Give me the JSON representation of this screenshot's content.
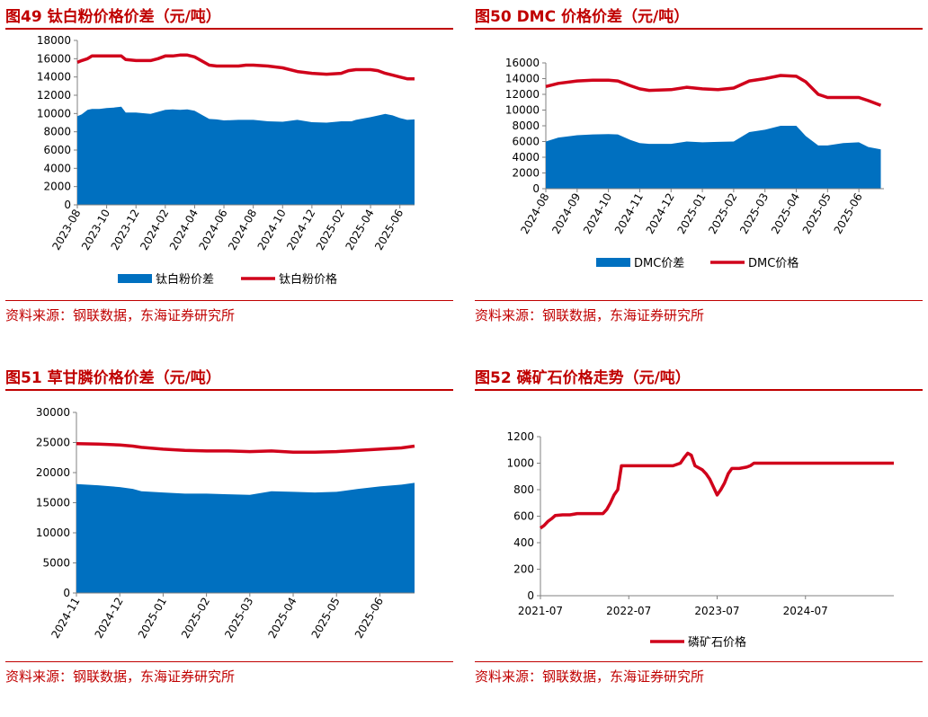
{
  "charts": [
    {
      "id": "c49",
      "panel_title": "图49  钛白粉价格价差（元/吨）",
      "source": "资料来源：钢联数据，东海证券研究所",
      "chart_data": {
        "type": "area+line",
        "title": "钛白粉价格价差（元/吨）",
        "ylim": [
          0,
          18000
        ],
        "yticks": [
          0,
          2000,
          4000,
          6000,
          8000,
          10000,
          12000,
          14000,
          16000,
          18000
        ],
        "ytick_labels": [
          "0",
          "2000",
          "4000",
          "6000",
          "8000",
          "10000",
          "12000",
          "14000",
          "16000",
          "18000"
        ],
        "xlim": [
          0,
          23
        ],
        "xticks": [
          0,
          2,
          4,
          6,
          8,
          10,
          12,
          14,
          16,
          18,
          20,
          22
        ],
        "xtick_labels": [
          "2023-08",
          "2023-10",
          "2023-12",
          "2024-02",
          "2024-04",
          "2024-06",
          "2024-08",
          "2024-10",
          "2024-12",
          "2025-02",
          "2025-04",
          "2025-06"
        ],
        "series": [
          {
            "name": "钛白粉价差",
            "kind": "area",
            "x": [
              0,
              0.3,
              0.7,
              1,
              1.5,
              2,
              2.5,
              3,
              3.3,
              4,
              5,
              6,
              6.5,
              7,
              7.5,
              8,
              9,
              9.5,
              10,
              11,
              12,
              13,
              14,
              15,
              16,
              17,
              18,
              18.7,
              19,
              20,
              21,
              21.5,
              22,
              22.5,
              23
            ],
            "y": [
              9700,
              9900,
              10400,
              10500,
              10500,
              10600,
              10650,
              10750,
              10100,
              10100,
              9950,
              10400,
              10450,
              10400,
              10450,
              10300,
              9400,
              9350,
              9250,
              9300,
              9300,
              9150,
              9100,
              9300,
              9050,
              9000,
              9150,
              9150,
              9300,
              9600,
              9950,
              9800,
              9500,
              9300,
              9350
            ]
          },
          {
            "name": "钛白粉价格",
            "kind": "line",
            "x": [
              0,
              0.3,
              0.7,
              1,
              1.5,
              2,
              2.5,
              3,
              3.3,
              4,
              5,
              5.5,
              6,
              6.5,
              7,
              7.5,
              8,
              9,
              9.5,
              10,
              11,
              11.5,
              12,
              13,
              14,
              15,
              16,
              17,
              18,
              18.5,
              19,
              20,
              20.5,
              21,
              21.5,
              22,
              22.5,
              23
            ],
            "y": [
              15600,
              15800,
              16000,
              16300,
              16300,
              16300,
              16300,
              16300,
              15900,
              15800,
              15800,
              16000,
              16300,
              16300,
              16400,
              16400,
              16200,
              15300,
              15200,
              15200,
              15200,
              15300,
              15300,
              15200,
              15000,
              14600,
              14400,
              14300,
              14400,
              14700,
              14800,
              14800,
              14700,
              14400,
              14200,
              14000,
              13800,
              13800
            ]
          }
        ],
        "legend": [
          "钛白粉价差",
          "钛白粉价格"
        ],
        "legend_position": "bottom"
      }
    },
    {
      "id": "c50",
      "panel_title": "图50  DMC 价格价差（元/吨）",
      "source": "资料来源：钢联数据，东海证券研究所",
      "chart_data": {
        "type": "area+line",
        "title": "DMC 价格价差（元/吨）",
        "ylim": [
          0,
          16000
        ],
        "yticks": [
          0,
          2000,
          4000,
          6000,
          8000,
          10000,
          12000,
          14000,
          16000
        ],
        "ytick_labels": [
          "0",
          "2000",
          "4000",
          "6000",
          "8000",
          "10000",
          "12000",
          "14000",
          "16000"
        ],
        "xlim": [
          0,
          10.8
        ],
        "xticks": [
          0,
          1,
          2,
          3,
          4,
          5,
          6,
          7,
          8,
          9,
          10
        ],
        "xtick_labels": [
          "2024-08",
          "2024-09",
          "2024-10",
          "2024-11",
          "2024-12",
          "2025-01",
          "2025-02",
          "2025-03",
          "2025-04",
          "2025-05",
          "2025-06"
        ],
        "series": [
          {
            "name": "DMC价差",
            "kind": "area",
            "x": [
              0,
              0.4,
              1,
              1.5,
              2,
              2.3,
              2.7,
              3,
              3.3,
              4,
              4.5,
              5,
              5.5,
              6,
              6.5,
              7,
              7.5,
              8,
              8.3,
              8.7,
              9,
              9.5,
              10,
              10.3,
              10.7
            ],
            "y": [
              6000,
              6500,
              6800,
              6900,
              6950,
              6900,
              6200,
              5800,
              5700,
              5700,
              6000,
              5900,
              5950,
              6000,
              7200,
              7500,
              8000,
              8000,
              6700,
              5500,
              5500,
              5800,
              5900,
              5300,
              5000
            ]
          },
          {
            "name": "DMC价格",
            "kind": "line",
            "x": [
              0,
              0.4,
              1,
              1.5,
              2,
              2.3,
              2.7,
              3,
              3.3,
              4,
              4.5,
              5,
              5.5,
              6,
              6.5,
              7,
              7.5,
              8,
              8.3,
              8.7,
              9,
              9.5,
              10,
              10.3,
              10.7
            ],
            "y": [
              13000,
              13400,
              13700,
              13800,
              13800,
              13700,
              13100,
              12700,
              12500,
              12600,
              12900,
              12700,
              12600,
              12800,
              13700,
              14000,
              14400,
              14300,
              13600,
              12000,
              11600,
              11600,
              11600,
              11200,
              10600
            ]
          }
        ],
        "legend": [
          "DMC价差",
          "DMC价格"
        ],
        "legend_position": "bottom"
      }
    },
    {
      "id": "c51",
      "panel_title": "图51  草甘膦价格价差（元/吨）",
      "source": "资料来源：钢联数据，东海证券研究所",
      "chart_data": {
        "type": "area+line",
        "title": "草甘膦价格价差（元/吨）",
        "ylim": [
          0,
          30000
        ],
        "yticks": [
          0,
          5000,
          10000,
          15000,
          20000,
          25000,
          30000
        ],
        "ytick_labels": [
          "0",
          "5000",
          "10000",
          "15000",
          "20000",
          "25000",
          "30000"
        ],
        "xlim": [
          0,
          7.8
        ],
        "xticks": [
          0,
          1,
          2,
          3,
          4,
          5,
          6,
          7
        ],
        "xtick_labels": [
          "2024-11",
          "2024-12",
          "2025-01",
          "2025-02",
          "2025-03",
          "2025-04",
          "2025-05",
          "2025-06"
        ],
        "series": [
          {
            "name": "草甘膦价差",
            "kind": "area",
            "x": [
              0,
              0.5,
              1,
              1.3,
              1.5,
              2,
              2.5,
              3,
              3.5,
              4,
              4.5,
              5,
              5.5,
              6,
              6.5,
              7,
              7.5,
              7.8
            ],
            "y": [
              18100,
              17900,
              17600,
              17300,
              16900,
              16700,
              16500,
              16500,
              16400,
              16300,
              16900,
              16800,
              16700,
              16800,
              17300,
              17700,
              18000,
              18300
            ]
          },
          {
            "name": "草甘膦价格",
            "kind": "line",
            "x": [
              0,
              0.5,
              1,
              1.3,
              1.5,
              2,
              2.5,
              3,
              3.5,
              4,
              4.5,
              5,
              5.5,
              6,
              6.5,
              7,
              7.5,
              7.8
            ],
            "y": [
              24800,
              24750,
              24600,
              24400,
              24200,
              23900,
              23700,
              23600,
              23600,
              23500,
              23600,
              23400,
              23400,
              23500,
              23700,
              23900,
              24100,
              24400
            ]
          }
        ],
        "legend": [
          "草甘膦价差",
          "草甘膦价格"
        ],
        "legend_position": "bottom"
      }
    },
    {
      "id": "c52",
      "panel_title": "图52  磷矿石价格走势（元/吨）",
      "source": "资料来源：钢联数据，东海证券研究所",
      "chart_data": {
        "type": "line",
        "title": "磷矿石价格走势（元/吨）",
        "ylim": [
          0,
          1200
        ],
        "yticks": [
          0,
          200,
          400,
          600,
          800,
          1000,
          1200
        ],
        "ytick_labels": [
          "0",
          "200",
          "400",
          "600",
          "800",
          "1000",
          "1200"
        ],
        "xlim": [
          0,
          48
        ],
        "xticks": [
          0,
          12,
          24,
          36
        ],
        "xtick_labels": [
          "2021-07",
          "2022-07",
          "2023-07",
          "2024-07"
        ],
        "series": [
          {
            "name": "磷矿石价格",
            "kind": "line",
            "x": [
              0,
              0.5,
              1,
              1.5,
              2,
              3,
              4,
              5,
              8,
              8.5,
              9,
              9.5,
              10,
              10.5,
              11,
              12,
              15,
              18,
              19,
              19.5,
              20,
              20.5,
              21,
              22,
              22.5,
              23,
              23.5,
              24,
              24.5,
              25,
              25.5,
              26,
              27,
              28,
              28.5,
              29,
              30,
              33,
              36,
              40,
              44,
              48
            ],
            "y": [
              510,
              530,
              560,
              580,
              605,
              610,
              610,
              620,
              620,
              620,
              650,
              700,
              760,
              800,
              980,
              980,
              980,
              980,
              1000,
              1040,
              1075,
              1060,
              980,
              950,
              920,
              880,
              820,
              760,
              800,
              850,
              920,
              960,
              960,
              970,
              980,
              1000,
              1000,
              1000,
              1000,
              1000,
              1000,
              1000
            ]
          }
        ],
        "legend": [
          "磷矿石价格"
        ],
        "legend_position": "bottom"
      }
    }
  ],
  "colors": {
    "area": "#0070c0",
    "line": "#d0021b",
    "title": "#c00000",
    "axis": "#808080"
  }
}
